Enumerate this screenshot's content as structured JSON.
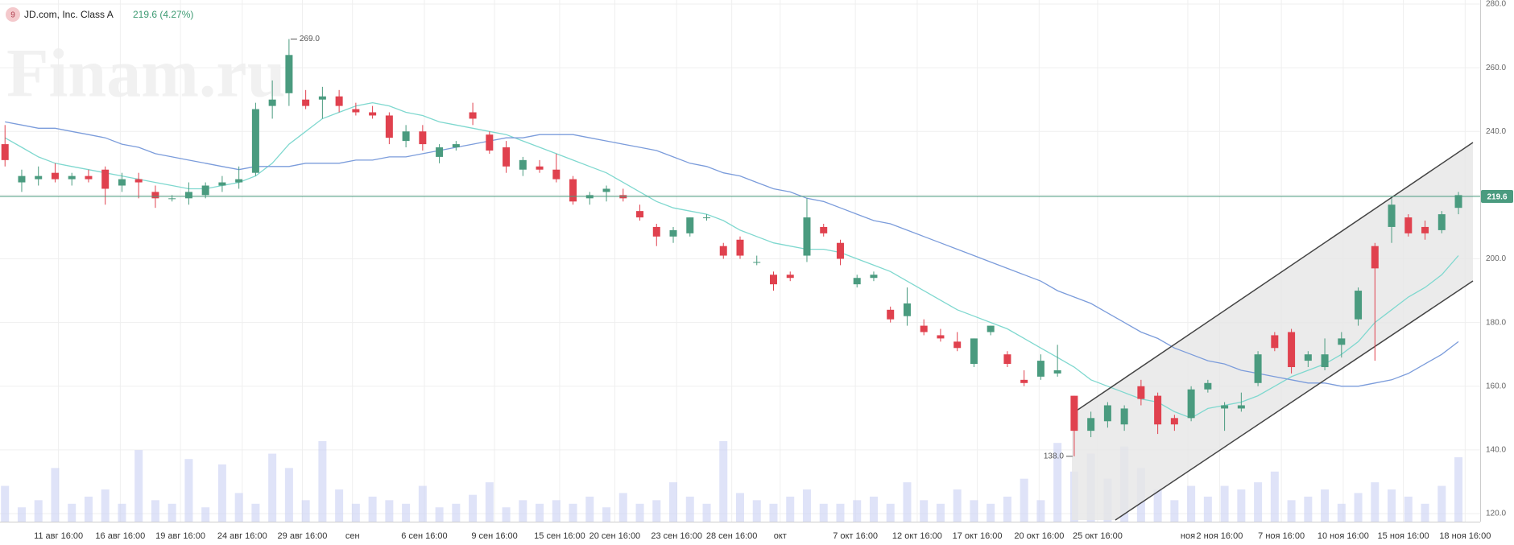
{
  "chart_data": {
    "type": "candlestick",
    "logo": "9",
    "title": "JD.com, Inc. Class A",
    "quote": "219.6 (4.27%)",
    "watermark": "Finam.ru",
    "up_color": "#4a9b7f",
    "down_color": "#e0414e",
    "xlim": [
      -0.3,
      88.3
    ],
    "ylim": [
      120,
      280
    ],
    "yticks": [
      {
        "value": 120,
        "label": "120.0"
      },
      {
        "value": 140,
        "label": "140.0"
      },
      {
        "value": 160,
        "label": "160.0"
      },
      {
        "value": 180,
        "label": "180.0"
      },
      {
        "value": 200,
        "label": "200.0"
      },
      {
        "value": 220,
        "label": "220.0"
      },
      {
        "value": 240,
        "label": "240.0"
      },
      {
        "value": 260,
        "label": "260.0"
      },
      {
        "value": 280,
        "label": "280.0"
      }
    ],
    "xticks": [
      {
        "value": 3.2,
        "label": "11 авг 16:00"
      },
      {
        "value": 6.9,
        "label": "16 авг 16:00"
      },
      {
        "value": 10.5,
        "label": "19 авг 16:00"
      },
      {
        "value": 14.2,
        "label": "24 авг 16:00"
      },
      {
        "value": 17.8,
        "label": "29 авг 16:00"
      },
      {
        "value": 20.8,
        "label": "сен"
      },
      {
        "value": 25.1,
        "label": "6 сен 16:00"
      },
      {
        "value": 29.3,
        "label": "9 сен 16:00"
      },
      {
        "value": 33.2,
        "label": "15 сен 16:00"
      },
      {
        "value": 36.5,
        "label": "20 сен 16:00"
      },
      {
        "value": 40.2,
        "label": "23 сен 16:00"
      },
      {
        "value": 43.5,
        "label": "28 сен 16:00"
      },
      {
        "value": 46.4,
        "label": "окт"
      },
      {
        "value": 50.9,
        "label": "7 окт 16:00"
      },
      {
        "value": 54.6,
        "label": "12 окт 16:00"
      },
      {
        "value": 58.2,
        "label": "17 окт 16:00"
      },
      {
        "value": 61.9,
        "label": "20 окт 16:00"
      },
      {
        "value": 65.4,
        "label": "25 окт 16:00"
      },
      {
        "value": 70.8,
        "label": "ноя"
      },
      {
        "value": 72.7,
        "label": "2 ноя 16:00"
      },
      {
        "value": 76.4,
        "label": "7 ноя 16:00"
      },
      {
        "value": 80.1,
        "label": "10 ноя 16:00"
      },
      {
        "value": 83.7,
        "label": "15 ноя 16:00"
      },
      {
        "value": 87.4,
        "label": "18 ноя 16:00"
      }
    ],
    "open": [
      236,
      224,
      225,
      227,
      225,
      226,
      228,
      223,
      225,
      221,
      219,
      219,
      220,
      223,
      224,
      227,
      248,
      252,
      250,
      250,
      251,
      247,
      246,
      245,
      237,
      240,
      232,
      235,
      246,
      239,
      235,
      228,
      229,
      228,
      225,
      219,
      221,
      220,
      215,
      210,
      207,
      208,
      213,
      204,
      206,
      199,
      195,
      195,
      201,
      210,
      205,
      192,
      194,
      184,
      182,
      179,
      176,
      174,
      167,
      177,
      170,
      162,
      163,
      164,
      157,
      146,
      149,
      148,
      160,
      157,
      150,
      150,
      159,
      153,
      153,
      161,
      176,
      177,
      168,
      166,
      173,
      181,
      204,
      210,
      213,
      210,
      209,
      216
    ],
    "high": [
      242,
      228,
      229,
      230,
      227,
      228,
      229,
      227,
      227,
      223,
      220,
      224,
      224,
      226,
      229,
      249,
      256,
      269,
      253,
      254,
      253,
      249,
      248,
      246,
      242,
      242,
      236,
      237,
      249,
      240,
      237,
      232,
      231,
      233,
      226,
      221,
      223,
      222,
      217,
      211,
      210,
      213,
      214,
      205,
      207,
      201,
      196,
      196,
      219,
      211,
      206,
      195,
      196,
      185,
      191,
      181,
      178,
      177,
      175,
      179,
      171,
      165,
      170,
      173,
      157,
      152,
      155,
      154,
      162,
      158,
      151,
      160,
      162,
      155,
      158,
      171,
      177,
      178,
      171,
      175,
      177,
      191,
      205,
      219,
      214,
      212,
      215,
      221
    ],
    "low": [
      229,
      221,
      223,
      224,
      223,
      224,
      217,
      221,
      219,
      216,
      218,
      217,
      219,
      221,
      222,
      226,
      244,
      248,
      247,
      244,
      246,
      245,
      244,
      236,
      235,
      234,
      230,
      234,
      242,
      233,
      227,
      226,
      227,
      224,
      217,
      217,
      218,
      218,
      212,
      204,
      205,
      207,
      212,
      200,
      200,
      198,
      190,
      193,
      199,
      207,
      198,
      191,
      193,
      180,
      179,
      176,
      174,
      171,
      166,
      176,
      166,
      160,
      162,
      163,
      138,
      144,
      147,
      146,
      154,
      145,
      146,
      149,
      158,
      146,
      152,
      160,
      171,
      164,
      166,
      165,
      169,
      179,
      168,
      205,
      207,
      206,
      208,
      214
    ],
    "close": [
      231,
      226,
      226,
      225,
      226,
      225,
      222,
      225,
      224,
      219,
      219,
      221,
      223,
      224,
      225,
      247,
      250,
      264,
      248,
      251,
      248,
      246,
      245,
      238,
      240,
      236,
      235,
      236,
      244,
      234,
      229,
      231,
      228,
      225,
      218,
      220,
      222,
      219,
      213,
      207,
      209,
      213,
      213,
      201,
      201,
      199,
      192,
      194,
      213,
      208,
      200,
      194,
      195,
      181,
      186,
      177,
      175,
      172,
      175,
      179,
      167,
      161,
      168,
      165,
      146,
      150,
      154,
      153,
      156,
      148,
      148,
      159,
      161,
      154,
      154,
      170,
      172,
      166,
      170,
      170,
      175,
      190,
      197,
      217,
      208,
      208,
      214,
      220
    ],
    "volume": [
      20,
      8,
      12,
      30,
      10,
      14,
      18,
      10,
      40,
      12,
      10,
      35,
      8,
      32,
      16,
      10,
      38,
      30,
      12,
      45,
      18,
      10,
      14,
      12,
      10,
      20,
      8,
      10,
      15,
      22,
      8,
      12,
      10,
      12,
      10,
      14,
      8,
      16,
      10,
      12,
      22,
      14,
      10,
      45,
      16,
      12,
      10,
      14,
      18,
      10,
      10,
      12,
      14,
      10,
      22,
      12,
      10,
      18,
      12,
      10,
      14,
      24,
      12,
      44,
      28,
      38,
      24,
      42,
      30,
      18,
      12,
      20,
      14,
      20,
      18,
      22,
      28,
      12,
      14,
      18,
      10,
      16,
      22,
      18,
      14,
      10,
      20,
      36
    ],
    "series": [
      {
        "name": "MA fast",
        "color": "#7fd8cf",
        "values": [
          238,
          235,
          232,
          230,
          229,
          228,
          227,
          226,
          225,
          224,
          223,
          222,
          222,
          223,
          224,
          226,
          230,
          236,
          240,
          244,
          246,
          248,
          249,
          248,
          246,
          245,
          243,
          242,
          241,
          240,
          239,
          237,
          235,
          233,
          231,
          229,
          227,
          224,
          221,
          218,
          216,
          215,
          214,
          212,
          209,
          207,
          205,
          204,
          203,
          203,
          202,
          200,
          198,
          196,
          193,
          190,
          187,
          184,
          182,
          180,
          178,
          175,
          172,
          169,
          166,
          162,
          160,
          158,
          156,
          155,
          152,
          150,
          153,
          154,
          155,
          157,
          160,
          163,
          165,
          167,
          170,
          174,
          180,
          184,
          188,
          191,
          195,
          201
        ]
      },
      {
        "name": "MA slow",
        "color": "#7b9cdb",
        "values": [
          243,
          242,
          241,
          241,
          240,
          239,
          238,
          236,
          235,
          233,
          232,
          231,
          230,
          229,
          228,
          229,
          229,
          229,
          230,
          230,
          230,
          231,
          231,
          232,
          232,
          233,
          234,
          235,
          236,
          237,
          238,
          238,
          239,
          239,
          239,
          238,
          237,
          236,
          235,
          234,
          232,
          230,
          229,
          227,
          226,
          224,
          222,
          221,
          219,
          218,
          216,
          214,
          212,
          211,
          209,
          207,
          205,
          203,
          201,
          199,
          197,
          195,
          193,
          190,
          188,
          186,
          183,
          180,
          177,
          175,
          172,
          170,
          168,
          167,
          165,
          164,
          163,
          162,
          161,
          161,
          160,
          160,
          161,
          162,
          164,
          167,
          170,
          174
        ]
      }
    ],
    "last_price": 219.6,
    "annotations": [
      {
        "candle": 17,
        "value": 269,
        "label": "269.0",
        "side": "right"
      },
      {
        "candle": 64,
        "value": 138,
        "label": "138.0",
        "side": "left"
      }
    ],
    "grid": true
  }
}
